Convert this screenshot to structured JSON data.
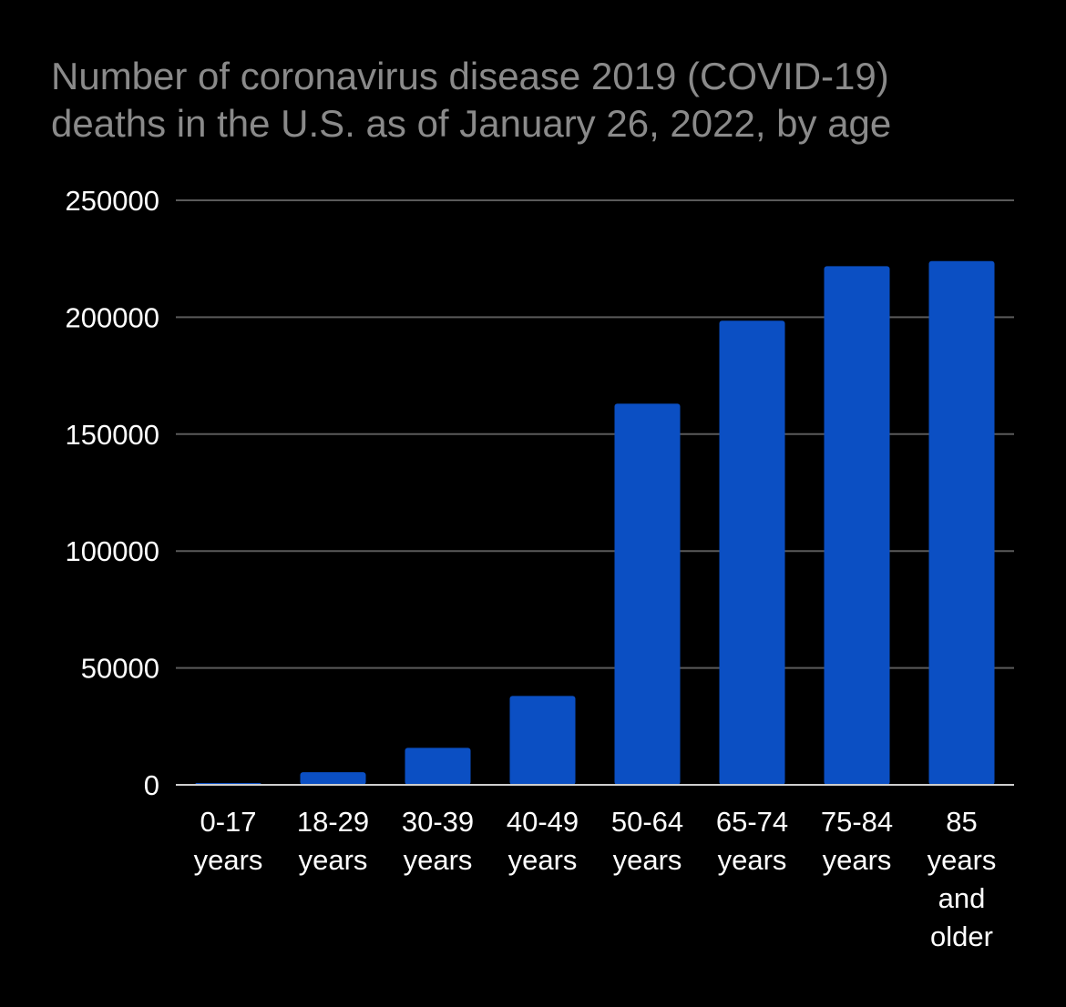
{
  "chart_data": {
    "type": "bar",
    "title_lines": [
      "Number of coronavirus disease 2019 (COVID-19)",
      "deaths in the U.S. as of January 26, 2022, by age"
    ],
    "categories": [
      [
        "0-17",
        "years"
      ],
      [
        "18-29",
        "years"
      ],
      [
        "30-39",
        "years"
      ],
      [
        "40-49",
        "years"
      ],
      [
        "50-64",
        "years"
      ],
      [
        "65-74",
        "years"
      ],
      [
        "75-84",
        "years"
      ],
      [
        "85",
        "years",
        "and",
        "older"
      ]
    ],
    "values": [
      800,
      5400,
      15800,
      38000,
      163000,
      198500,
      221800,
      224000
    ],
    "y_ticks": [
      "0",
      "50000",
      "100000",
      "150000",
      "200000",
      "250000"
    ],
    "ylim": [
      0,
      250000
    ],
    "grid": true,
    "legend": "none",
    "colors": {
      "background": "#000000",
      "bar": "#0b4fc3",
      "grid": "#5a5a5a",
      "baseline": "#cfcfcf",
      "title": "#8a8a8a",
      "text": "#ffffff"
    }
  }
}
